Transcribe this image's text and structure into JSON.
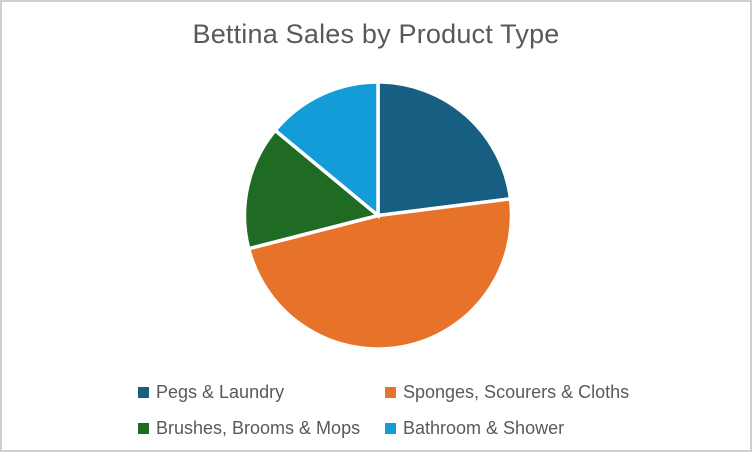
{
  "chart_data": {
    "type": "pie",
    "title": "Bettina Sales by Product Type",
    "series": [
      {
        "name": "Pegs & Laundry",
        "value": 23,
        "color": "#165E82"
      },
      {
        "name": "Sponges, Scourers & Cloths",
        "value": 48,
        "color": "#E7732B"
      },
      {
        "name": "Brushes, Brooms & Mops",
        "value": 15,
        "color": "#206B24"
      },
      {
        "name": "Bathroom & Shower",
        "value": 14,
        "color": "#129DD8"
      }
    ],
    "value_unit": "percent_of_total_estimated_from_angles",
    "start_angle_deg": 0,
    "direction": "clockwise",
    "legend_position": "bottom",
    "slice_border_color": "#FFFFFF"
  },
  "theme": {
    "background": "#FFFFFF",
    "frame_border_color": "#D0CECE",
    "text_color": "#595959"
  }
}
